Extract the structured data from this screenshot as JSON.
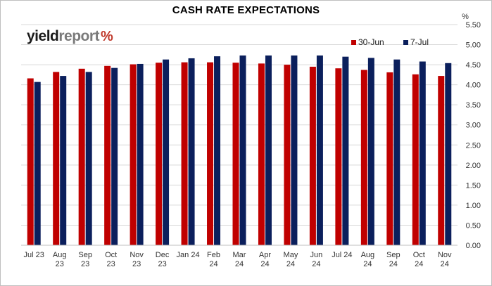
{
  "chart_data": {
    "type": "bar",
    "title": "CASH RATE EXPECTATIONS",
    "ylabel": "%",
    "ylim": [
      0,
      5.5
    ],
    "ytick_step": 0.5,
    "grid": true,
    "legend_position": "top-right",
    "categories": [
      [
        "Jul 23"
      ],
      [
        "Aug",
        "23"
      ],
      [
        "Sep",
        "23"
      ],
      [
        "Oct",
        "23"
      ],
      [
        "Nov",
        "23"
      ],
      [
        "Dec",
        "23"
      ],
      [
        "Jan 24"
      ],
      [
        "Feb",
        "24"
      ],
      [
        "Mar",
        "24"
      ],
      [
        "Apr",
        "24"
      ],
      [
        "May",
        "24"
      ],
      [
        "Jun",
        "24"
      ],
      [
        "Jul 24"
      ],
      [
        "Aug",
        "24"
      ],
      [
        "Sep",
        "24"
      ],
      [
        "Oct",
        "24"
      ],
      [
        "Nov",
        "24"
      ]
    ],
    "series": [
      {
        "name": "30-Jun",
        "color": "#c00000",
        "values": [
          4.16,
          4.32,
          4.4,
          4.47,
          4.51,
          4.55,
          4.56,
          4.56,
          4.55,
          4.53,
          4.5,
          4.45,
          4.41,
          4.37,
          4.31,
          4.26,
          4.22
        ]
      },
      {
        "name": "7-Jul",
        "color": "#0b1f5c",
        "values": [
          4.07,
          4.22,
          4.32,
          4.42,
          4.52,
          4.63,
          4.66,
          4.71,
          4.73,
          4.73,
          4.73,
          4.73,
          4.7,
          4.67,
          4.63,
          4.58,
          4.54
        ]
      }
    ]
  },
  "logo": {
    "part1": "yield",
    "part2": "report",
    "symbol": "%"
  }
}
